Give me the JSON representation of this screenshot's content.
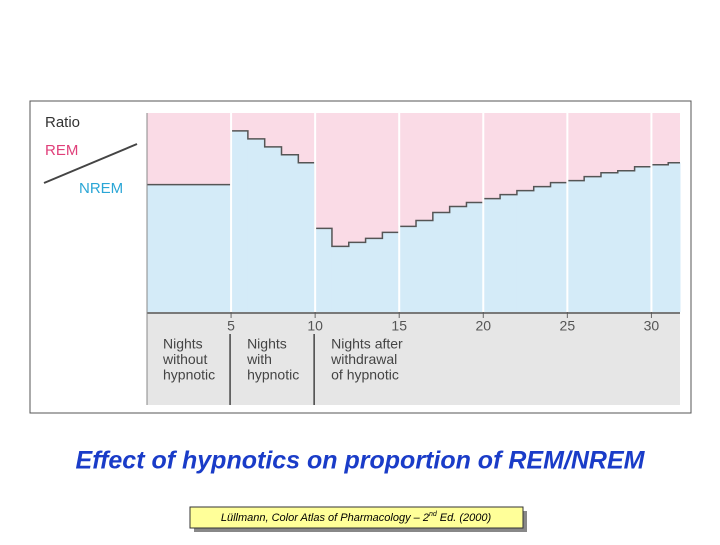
{
  "chart_data": {
    "type": "step",
    "axis_label": "Ratio",
    "upper_label": "REM",
    "lower_label": "NREM",
    "upper_color": "#fadbe6",
    "lower_color": "#d4ebf8",
    "x": [
      0,
      1,
      2,
      3,
      4,
      5,
      6,
      7,
      8,
      9,
      10,
      11,
      12,
      13,
      14,
      15,
      16,
      17,
      18,
      19,
      20,
      21,
      22,
      23,
      24,
      25,
      26,
      27,
      28,
      29,
      30,
      31
    ],
    "values": [
      64,
      64,
      64,
      64,
      64,
      91,
      87,
      83,
      79,
      75,
      42,
      33,
      35,
      37,
      40,
      43,
      46,
      50,
      53,
      55,
      57,
      59,
      61,
      63,
      65,
      66,
      68,
      70,
      71,
      73,
      74,
      75
    ],
    "xlim": [
      0,
      31.7
    ],
    "ylim": [
      0,
      100
    ],
    "xticks": [
      5,
      10,
      15,
      20,
      25,
      30
    ],
    "grid": true,
    "phases": [
      {
        "start": 0,
        "lines": [
          "Nights",
          "without",
          "hypnotic"
        ]
      },
      {
        "start": 5,
        "lines": [
          "Nights",
          "with",
          "hypnotic"
        ]
      },
      {
        "start": 10,
        "lines": [
          "Nights after",
          "withdrawal",
          "of hypnotic"
        ]
      }
    ]
  },
  "caption": "Effect of hypnotics on proportion of REM/NREM",
  "source": {
    "before": "Lüllmann, Color Atlas of Pharmacology – 2",
    "sup": "nd",
    "after": " Ed. (2000)"
  }
}
